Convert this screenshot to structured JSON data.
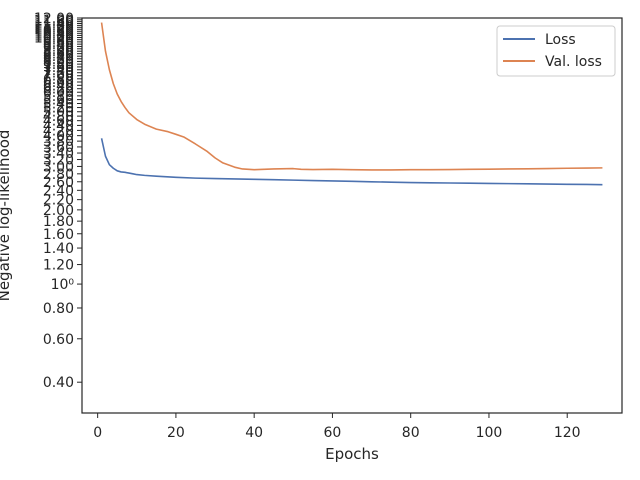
{
  "chart_data": {
    "type": "line",
    "xlabel": "Epochs",
    "ylabel": "Negative log-likelihood",
    "xlim": [
      -4,
      134
    ],
    "xticks": [
      0,
      20,
      40,
      60,
      80,
      100,
      120
    ],
    "ylim": [
      0.3,
      12.0
    ],
    "yscale": "log",
    "ytick_labels": [
      {
        "v": 0.4,
        "label": "0.40"
      },
      {
        "v": 0.6,
        "label": "0.60"
      },
      {
        "v": 0.8,
        "label": "0.80"
      },
      {
        "v": 1.0,
        "label": "10⁰"
      },
      {
        "v": 1.2,
        "label": "1.20"
      },
      {
        "v": 1.4,
        "label": "1.40"
      },
      {
        "v": 1.6,
        "label": "1.60"
      },
      {
        "v": 1.8,
        "label": "1.80"
      },
      {
        "v": 2.0,
        "label": "2.00"
      },
      {
        "v": 2.2,
        "label": "2.20"
      },
      {
        "v": 2.4,
        "label": "2.40"
      },
      {
        "v": 2.6,
        "label": "2.60"
      },
      {
        "v": 2.8,
        "label": "2.80"
      },
      {
        "v": 3.0,
        "label": "3.00"
      },
      {
        "v": 3.2,
        "label": "3.20"
      },
      {
        "v": 3.4,
        "label": "3.40"
      },
      {
        "v": 3.6,
        "label": "3.60"
      },
      {
        "v": 3.8,
        "label": "3.80"
      },
      {
        "v": 4.0,
        "label": "4.00"
      },
      {
        "v": 4.2,
        "label": "4.20"
      },
      {
        "v": 4.4,
        "label": "4.40"
      },
      {
        "v": 4.6,
        "label": "4.60"
      },
      {
        "v": 4.8,
        "label": "4.80"
      },
      {
        "v": 5.0,
        "label": "5.00"
      },
      {
        "v": 5.2,
        "label": "5.20"
      },
      {
        "v": 5.4,
        "label": "5.40"
      },
      {
        "v": 5.6,
        "label": "5.60"
      },
      {
        "v": 5.8,
        "label": "5.80"
      },
      {
        "v": 6.0,
        "label": "6.00"
      },
      {
        "v": 6.2,
        "label": "6.20"
      },
      {
        "v": 6.4,
        "label": "6.40"
      },
      {
        "v": 6.6,
        "label": "6.60"
      },
      {
        "v": 6.8,
        "label": "6.80"
      },
      {
        "v": 7.0,
        "label": "7.00"
      },
      {
        "v": 7.2,
        "label": "7.20"
      },
      {
        "v": 7.4,
        "label": "7.40"
      },
      {
        "v": 7.6,
        "label": "7.60"
      },
      {
        "v": 7.8,
        "label": "7.80"
      },
      {
        "v": 8.0,
        "label": "8.00"
      },
      {
        "v": 8.2,
        "label": "8.20"
      },
      {
        "v": 8.4,
        "label": "8.40"
      },
      {
        "v": 8.6,
        "label": "8.60"
      },
      {
        "v": 8.8,
        "label": "8.80"
      },
      {
        "v": 9.0,
        "label": "9.00"
      },
      {
        "v": 9.2,
        "label": "9.20"
      },
      {
        "v": 9.4,
        "label": "9.40"
      },
      {
        "v": 9.6,
        "label": "9.60"
      },
      {
        "v": 9.8,
        "label": "9.80"
      },
      {
        "v": 10.0,
        "label": "10.00"
      },
      {
        "v": 10.2,
        "label": "10.20"
      },
      {
        "v": 10.4,
        "label": "10.40"
      },
      {
        "v": 10.6,
        "label": "10.60"
      },
      {
        "v": 10.8,
        "label": "10.80"
      },
      {
        "v": 11.0,
        "label": "11.00"
      },
      {
        "v": 11.2,
        "label": "11.20"
      },
      {
        "v": 11.4,
        "label": "11.40"
      },
      {
        "v": 11.6,
        "label": "11.60"
      },
      {
        "v": 11.8,
        "label": "11.80"
      },
      {
        "v": 12.0,
        "label": "12.00"
      }
    ],
    "grid": false,
    "legend": "top-right",
    "series": [
      {
        "name": "Loss",
        "color": "#4c72b0",
        "x": [
          1,
          2,
          3,
          4,
          5,
          6,
          7,
          8,
          9,
          10,
          12,
          15,
          20,
          25,
          30,
          35,
          40,
          45,
          50,
          55,
          60,
          65,
          70,
          75,
          80,
          85,
          90,
          95,
          100,
          105,
          110,
          115,
          120,
          125,
          129
        ],
        "y": [
          3.9,
          3.3,
          3.05,
          2.95,
          2.88,
          2.85,
          2.84,
          2.82,
          2.8,
          2.78,
          2.76,
          2.74,
          2.71,
          2.69,
          2.68,
          2.67,
          2.66,
          2.65,
          2.64,
          2.63,
          2.62,
          2.61,
          2.6,
          2.59,
          2.58,
          2.575,
          2.57,
          2.565,
          2.56,
          2.555,
          2.55,
          2.545,
          2.54,
          2.535,
          2.53
        ]
      },
      {
        "name": "Val. loss",
        "color": "#dd8452",
        "x": [
          1,
          2,
          3,
          4,
          5,
          6,
          7,
          8,
          10,
          12,
          15,
          18,
          20,
          22,
          25,
          28,
          30,
          32,
          35,
          37,
          40,
          45,
          50,
          52,
          55,
          60,
          65,
          70,
          75,
          80,
          85,
          90,
          95,
          100,
          105,
          110,
          115,
          120,
          125,
          129
        ],
        "y": [
          11.5,
          8.8,
          7.4,
          6.5,
          5.9,
          5.5,
          5.2,
          4.95,
          4.65,
          4.45,
          4.25,
          4.15,
          4.05,
          3.95,
          3.7,
          3.45,
          3.25,
          3.1,
          2.98,
          2.93,
          2.91,
          2.93,
          2.94,
          2.92,
          2.915,
          2.92,
          2.91,
          2.905,
          2.905,
          2.91,
          2.91,
          2.915,
          2.92,
          2.925,
          2.93,
          2.935,
          2.94,
          2.95,
          2.955,
          2.96
        ]
      }
    ]
  }
}
